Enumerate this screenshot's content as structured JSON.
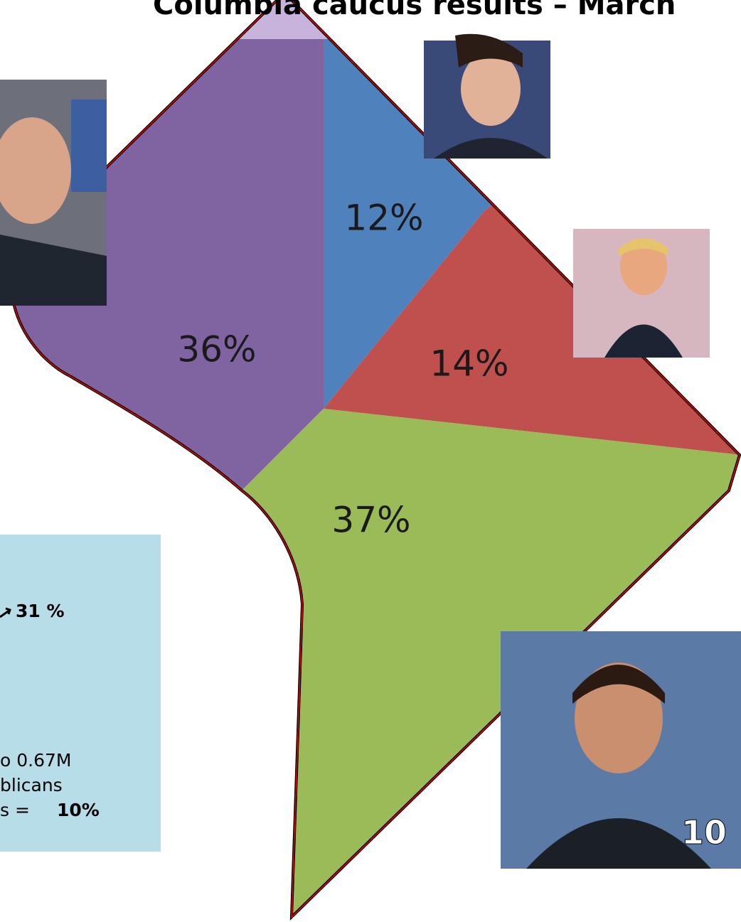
{
  "title": "Columbia caucus results – March",
  "map_labels": [
    "12%",
    "36%",
    "14%",
    "37%"
  ],
  "info_box": {
    "line1": "31 %",
    "line2": "o 0.67M",
    "line3": "blicans",
    "line4_prefix": "s =",
    "line4_value": "10%"
  },
  "slide_number": "10"
}
